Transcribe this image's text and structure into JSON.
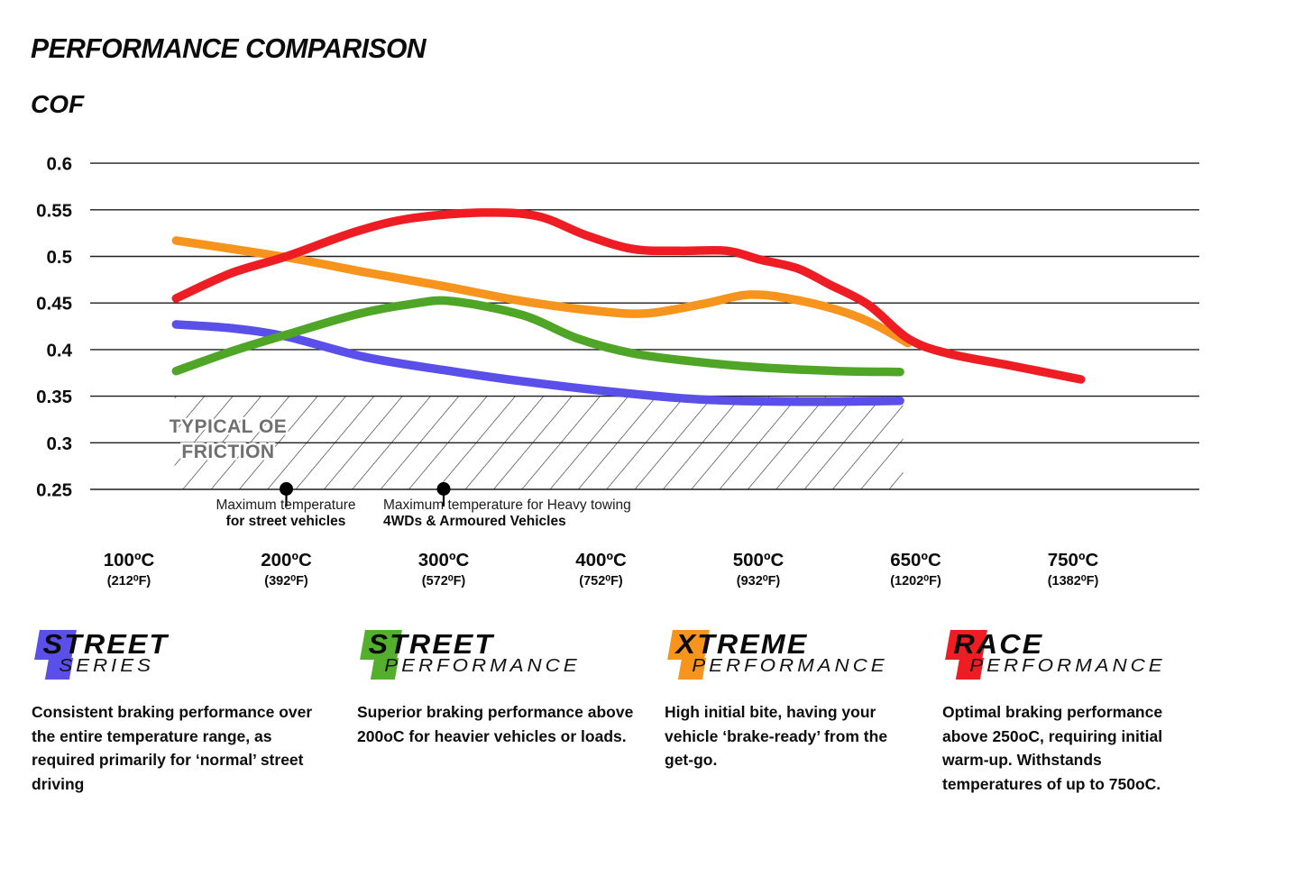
{
  "page": {
    "title": "PERFORMANCE COMPARISON",
    "y_axis_title": "COF"
  },
  "chart_data": {
    "type": "line",
    "title": "PERFORMANCE COMPARISON",
    "ylabel": "COF",
    "ylim": [
      0.25,
      0.6
    ],
    "y_ticks": [
      "0.6",
      "0.55",
      "0.5",
      "0.45",
      "0.4",
      "0.35",
      "0.3",
      "0.25"
    ],
    "grid": "horizontal",
    "x_categories": [
      {
        "c": "100ºC",
        "f": "(212⁰F)"
      },
      {
        "c": "200ºC",
        "f": "(392⁰F)"
      },
      {
        "c": "300ºC",
        "f": "(572⁰F)"
      },
      {
        "c": "400ºC",
        "f": "(752⁰F)"
      },
      {
        "c": "500ºC",
        "f": "(932⁰F)"
      },
      {
        "c": "650ºC",
        "f": "(1202⁰F)"
      },
      {
        "c": "750ºC",
        "f": "(1382⁰F)"
      }
    ],
    "series": [
      {
        "name": "Street Series",
        "color": "#5a4fe8",
        "points": [
          [
            0.3,
            0.427
          ],
          [
            0.65,
            0.423
          ],
          [
            1.0,
            0.414
          ],
          [
            1.5,
            0.392
          ],
          [
            2.0,
            0.378
          ],
          [
            2.5,
            0.366
          ],
          [
            3.0,
            0.356
          ],
          [
            3.5,
            0.348
          ],
          [
            3.85,
            0.345
          ],
          [
            4.4,
            0.344
          ],
          [
            4.9,
            0.345
          ]
        ]
      },
      {
        "name": "Street Performance",
        "color": "#4fa525",
        "points": [
          [
            0.3,
            0.377
          ],
          [
            0.65,
            0.398
          ],
          [
            1.0,
            0.416
          ],
          [
            1.45,
            0.438
          ],
          [
            1.8,
            0.449
          ],
          [
            2.05,
            0.452
          ],
          [
            2.5,
            0.437
          ],
          [
            2.85,
            0.412
          ],
          [
            3.2,
            0.396
          ],
          [
            3.6,
            0.387
          ],
          [
            4.0,
            0.381
          ],
          [
            4.5,
            0.377
          ],
          [
            4.9,
            0.376
          ]
        ]
      },
      {
        "name": "Xtreme Performance",
        "color": "#f7941d",
        "points": [
          [
            0.3,
            0.517
          ],
          [
            1.0,
            0.499
          ],
          [
            1.5,
            0.483
          ],
          [
            2.0,
            0.468
          ],
          [
            2.5,
            0.452
          ],
          [
            3.0,
            0.441
          ],
          [
            3.3,
            0.439
          ],
          [
            3.65,
            0.449
          ],
          [
            3.95,
            0.459
          ],
          [
            4.25,
            0.453
          ],
          [
            4.55,
            0.44
          ],
          [
            4.75,
            0.426
          ],
          [
            4.95,
            0.407
          ]
        ]
      },
      {
        "name": "Race Performance",
        "color": "#ee1c23",
        "points": [
          [
            0.3,
            0.455
          ],
          [
            0.65,
            0.482
          ],
          [
            1.0,
            0.5
          ],
          [
            1.45,
            0.527
          ],
          [
            1.8,
            0.541
          ],
          [
            2.25,
            0.547
          ],
          [
            2.6,
            0.543
          ],
          [
            2.9,
            0.523
          ],
          [
            3.2,
            0.508
          ],
          [
            3.5,
            0.506
          ],
          [
            3.8,
            0.506
          ],
          [
            4.0,
            0.497
          ],
          [
            4.25,
            0.487
          ],
          [
            4.45,
            0.47
          ],
          [
            4.7,
            0.448
          ],
          [
            4.95,
            0.412
          ],
          [
            5.2,
            0.396
          ],
          [
            5.6,
            0.383
          ],
          [
            6.05,
            0.368
          ]
        ]
      }
    ],
    "oe_zone": {
      "label_line1": "TYPICAL OE",
      "label_line2": "FRICTION",
      "cof_min": 0.25,
      "cof_max": 0.35,
      "x_from_category": 0.29,
      "x_to_category": 4.92,
      "label_color": "#6f6f6f"
    },
    "annotations": [
      {
        "x_category": 1,
        "line1": "Maximum temperature",
        "line2": "for street vehicles"
      },
      {
        "x_category": 2,
        "line1": "Maximum temperature for Heavy towing",
        "line2": "4WDs & Armoured Vehicles"
      }
    ]
  },
  "legend": [
    {
      "word1": "STREET",
      "word2": "SERIES",
      "color": "#5a4fe8",
      "description": "Consistent braking performance over the entire temperature range, as required primarily for ‘normal’ street driving"
    },
    {
      "word1": "STREET",
      "word2": "PERFORMANCE",
      "color": "#54b02c",
      "description": "Superior braking performance above 200oC for heavier vehicles or loads."
    },
    {
      "word1": "XTREME",
      "word2": "PERFORMANCE",
      "color": "#f7941d",
      "description": "High initial bite, having your vehicle ‘brake-ready’ from the get-go."
    },
    {
      "word1": "RACE",
      "word2": "PERFORMANCE",
      "color": "#ee1c23",
      "description": "Optimal braking performance above 250oC, requiring initial warm-up. Withstands temperatures of up to 750oC."
    }
  ]
}
